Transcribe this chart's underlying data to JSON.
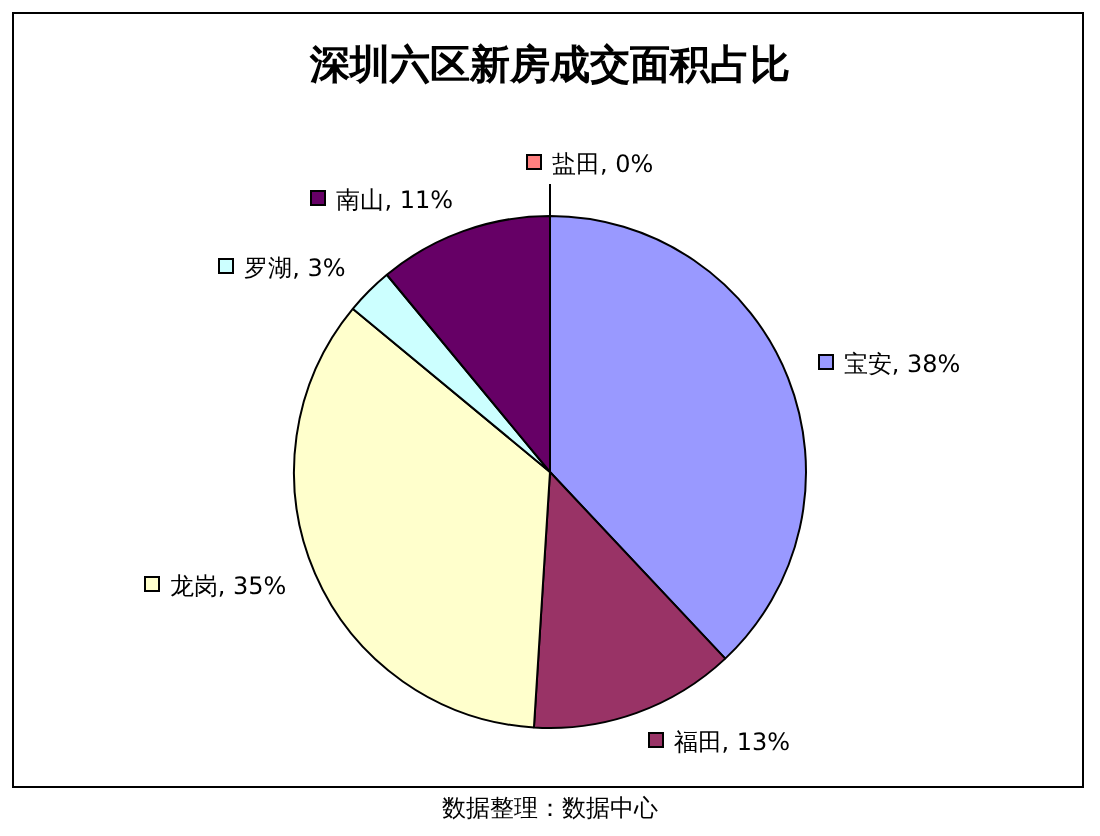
{
  "chart_data": {
    "type": "pie",
    "title": "深圳六区新房成交面积占比",
    "categories": [
      "宝安",
      "福田",
      "龙岗",
      "罗湖",
      "南山",
      "盐田"
    ],
    "values": [
      38,
      13,
      35,
      3,
      11,
      0
    ],
    "colors": [
      "#9999ff",
      "#993366",
      "#ffffcc",
      "#ccffff",
      "#660066",
      "#ff8080"
    ],
    "value_labels": [
      ", 38%",
      ", 13%",
      ", 35%",
      ", 3%",
      ", 11%",
      ", 0%"
    ],
    "legend": true,
    "annotations": [
      "数据整理：数据中心"
    ]
  }
}
